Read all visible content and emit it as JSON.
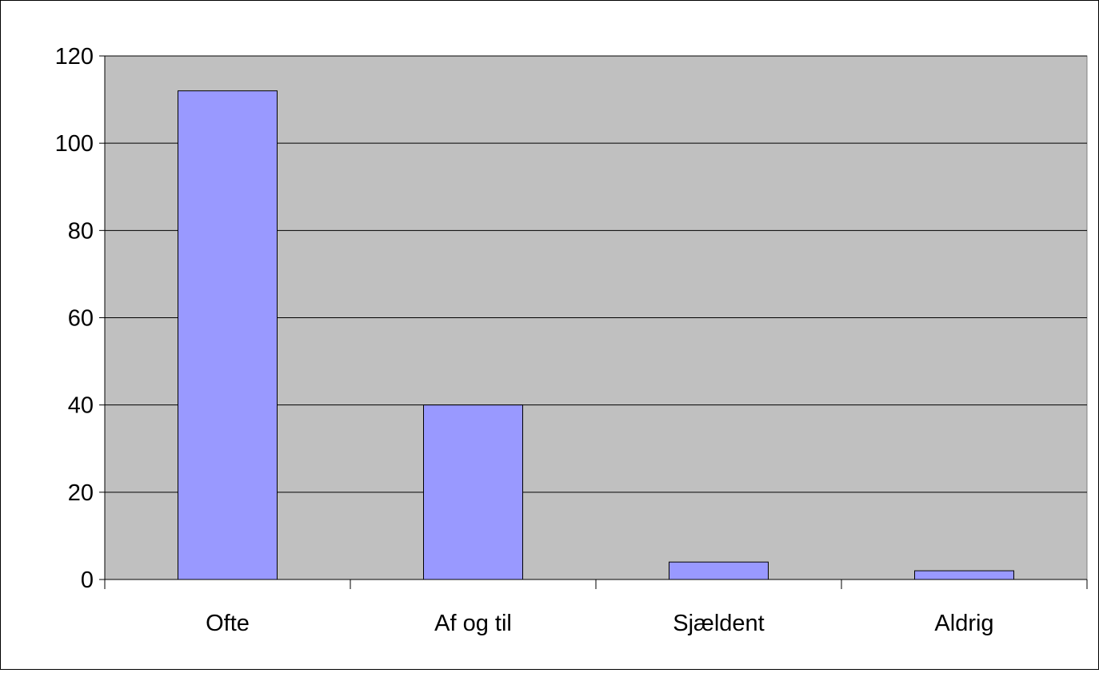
{
  "chart_data": {
    "type": "bar",
    "categories": [
      "Ofte",
      "Af og til",
      "Sjældent",
      "Aldrig"
    ],
    "values": [
      112,
      40,
      4,
      2
    ],
    "title": "",
    "xlabel": "",
    "ylabel": "",
    "ylim": [
      0,
      120
    ],
    "yticks": [
      "0",
      "20",
      "40",
      "60",
      "80",
      "100",
      "120"
    ],
    "grid": true,
    "legend": "none",
    "colors": {
      "bar_fill": "#9999ff",
      "bar_stroke": "#000000",
      "plot_background": "#c0c0c0",
      "grid": "#000000",
      "page_background": "#ffffff"
    }
  }
}
